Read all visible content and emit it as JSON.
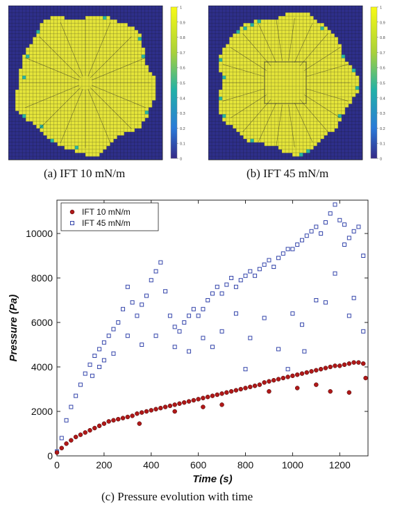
{
  "captions": {
    "a": "(a) IFT 10 mN/m",
    "b": "(b) IFT 45 mN/m",
    "c": "(c) Pressure evolution with time"
  },
  "colors": {
    "grid_background": "#2e2f8a",
    "fill": "#e4e43a",
    "edge": "#2bb5a0",
    "colorbar_top": "#f8fa13",
    "colorbar_mid": "#21b1a8",
    "colorbar_bottom": "#352a87",
    "series_ift10": "#b01818",
    "series_ift45": "#3344aa"
  },
  "colorbars": {
    "ticks": [
      "1",
      "0.9",
      "0.8",
      "0.7",
      "0.6",
      "0.5",
      "0.4",
      "0.3",
      "0.2",
      "0.1",
      "0"
    ]
  },
  "chart_data": [
    {
      "type": "heatmap",
      "title": "(a) IFT 10 mN/m",
      "description_values": "saturation field on square grid; near-circular region at ~1 (yellow), outside ~0 (dark blue)",
      "colorbar_range": [
        0,
        1
      ]
    },
    {
      "type": "heatmap",
      "title": "(b) IFT 45 mN/m",
      "description_values": "saturation field on square grid; near-circular region at ~1 (yellow), outside ~0 (dark blue)",
      "colorbar_range": [
        0,
        1
      ]
    },
    {
      "type": "scatter",
      "title": "(c) Pressure evolution with time",
      "xlabel": "Time (s)",
      "ylabel": "Pressure (Pa)",
      "xlim": [
        0,
        1320
      ],
      "ylim": [
        0,
        11500
      ],
      "xticks": [
        0,
        200,
        400,
        600,
        800,
        1000,
        1200
      ],
      "yticks": [
        0,
        2000,
        4000,
        6000,
        8000,
        10000
      ],
      "legend_position": "top-left",
      "series": [
        {
          "name": "IFT 10 mN/m",
          "marker": "filled-circle",
          "points": [
            [
              0,
              150
            ],
            [
              20,
              350
            ],
            [
              40,
              550
            ],
            [
              60,
              700
            ],
            [
              80,
              850
            ],
            [
              100,
              950
            ],
            [
              120,
              1050
            ],
            [
              140,
              1150
            ],
            [
              160,
              1250
            ],
            [
              180,
              1350
            ],
            [
              200,
              1450
            ],
            [
              220,
              1550
            ],
            [
              240,
              1600
            ],
            [
              260,
              1650
            ],
            [
              280,
              1700
            ],
            [
              300,
              1750
            ],
            [
              320,
              1800
            ],
            [
              340,
              1900
            ],
            [
              360,
              1950
            ],
            [
              380,
              2000
            ],
            [
              400,
              2050
            ],
            [
              420,
              2100
            ],
            [
              440,
              2150
            ],
            [
              460,
              2200
            ],
            [
              480,
              2250
            ],
            [
              500,
              2300
            ],
            [
              520,
              2350
            ],
            [
              540,
              2400
            ],
            [
              560,
              2450
            ],
            [
              580,
              2500
            ],
            [
              600,
              2550
            ],
            [
              620,
              2600
            ],
            [
              640,
              2650
            ],
            [
              660,
              2700
            ],
            [
              680,
              2750
            ],
            [
              700,
              2800
            ],
            [
              720,
              2850
            ],
            [
              740,
              2900
            ],
            [
              760,
              2950
            ],
            [
              780,
              3000
            ],
            [
              800,
              3050
            ],
            [
              820,
              3100
            ],
            [
              840,
              3150
            ],
            [
              860,
              3200
            ],
            [
              880,
              3300
            ],
            [
              900,
              3350
            ],
            [
              920,
              3400
            ],
            [
              940,
              3450
            ],
            [
              960,
              3500
            ],
            [
              980,
              3550
            ],
            [
              1000,
              3600
            ],
            [
              1020,
              3650
            ],
            [
              1040,
              3700
            ],
            [
              1060,
              3750
            ],
            [
              1080,
              3800
            ],
            [
              1100,
              3850
            ],
            [
              1120,
              3900
            ],
            [
              1140,
              3950
            ],
            [
              1160,
              4000
            ],
            [
              1180,
              4050
            ],
            [
              1200,
              4050
            ],
            [
              1220,
              4100
            ],
            [
              1240,
              4150
            ],
            [
              1260,
              4200
            ],
            [
              1280,
              4200
            ],
            [
              1300,
              4150
            ],
            [
              1310,
              3500
            ],
            [
              1160,
              2900
            ],
            [
              1240,
              2850
            ],
            [
              1020,
              3050
            ],
            [
              900,
              2900
            ],
            [
              700,
              2300
            ],
            [
              500,
              2000
            ],
            [
              350,
              1450
            ],
            [
              620,
              2200
            ],
            [
              1100,
              3200
            ]
          ]
        },
        {
          "name": "IFT 45 mN/m",
          "marker": "open-square",
          "points": [
            [
              0,
              200
            ],
            [
              20,
              800
            ],
            [
              40,
              1600
            ],
            [
              60,
              2200
            ],
            [
              80,
              2700
            ],
            [
              100,
              3200
            ],
            [
              120,
              3700
            ],
            [
              140,
              4100
            ],
            [
              160,
              4500
            ],
            [
              180,
              4800
            ],
            [
              200,
              5100
            ],
            [
              220,
              5400
            ],
            [
              240,
              5700
            ],
            [
              260,
              6000
            ],
            [
              280,
              6600
            ],
            [
              300,
              7600
            ],
            [
              320,
              6900
            ],
            [
              340,
              6300
            ],
            [
              360,
              6800
            ],
            [
              380,
              7200
            ],
            [
              400,
              7900
            ],
            [
              420,
              8300
            ],
            [
              440,
              8700
            ],
            [
              460,
              7400
            ],
            [
              480,
              6300
            ],
            [
              500,
              5800
            ],
            [
              520,
              5600
            ],
            [
              540,
              6000
            ],
            [
              560,
              6300
            ],
            [
              580,
              6600
            ],
            [
              600,
              6300
            ],
            [
              620,
              6600
            ],
            [
              640,
              7000
            ],
            [
              660,
              7300
            ],
            [
              680,
              7600
            ],
            [
              700,
              7300
            ],
            [
              720,
              7700
            ],
            [
              740,
              8000
            ],
            [
              760,
              7600
            ],
            [
              780,
              7900
            ],
            [
              800,
              8100
            ],
            [
              820,
              8300
            ],
            [
              840,
              8100
            ],
            [
              860,
              8400
            ],
            [
              880,
              8600
            ],
            [
              900,
              8800
            ],
            [
              920,
              8500
            ],
            [
              940,
              8900
            ],
            [
              960,
              9100
            ],
            [
              980,
              9300
            ],
            [
              1000,
              9300
            ],
            [
              1020,
              9500
            ],
            [
              1040,
              9700
            ],
            [
              1060,
              9900
            ],
            [
              1080,
              10100
            ],
            [
              1100,
              10300
            ],
            [
              1120,
              10000
            ],
            [
              1140,
              10500
            ],
            [
              1160,
              10900
            ],
            [
              1180,
              11300
            ],
            [
              1200,
              10600
            ],
            [
              1220,
              10400
            ],
            [
              1240,
              9800
            ],
            [
              1260,
              10100
            ],
            [
              1280,
              10300
            ],
            [
              1300,
              9000
            ],
            [
              200,
              4300
            ],
            [
              240,
              4600
            ],
            [
              300,
              5400
            ],
            [
              360,
              5000
            ],
            [
              420,
              5400
            ],
            [
              500,
              4900
            ],
            [
              560,
              4700
            ],
            [
              620,
              5300
            ],
            [
              700,
              5600
            ],
            [
              760,
              6400
            ],
            [
              820,
              5300
            ],
            [
              880,
              6200
            ],
            [
              940,
              4800
            ],
            [
              1000,
              6400
            ],
            [
              1040,
              5900
            ],
            [
              1100,
              7000
            ],
            [
              1140,
              6900
            ],
            [
              1180,
              8200
            ],
            [
              1220,
              9500
            ],
            [
              1260,
              7100
            ],
            [
              1300,
              5600
            ],
            [
              150,
              3600
            ],
            [
              180,
              4000
            ],
            [
              660,
              4900
            ],
            [
              980,
              3900
            ],
            [
              800,
              3900
            ],
            [
              1050,
              4700
            ],
            [
              1240,
              6300
            ]
          ]
        }
      ]
    }
  ]
}
